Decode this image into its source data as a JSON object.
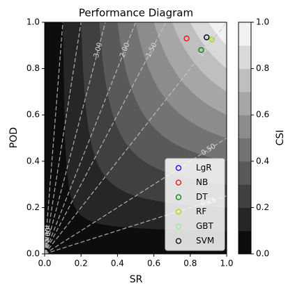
{
  "chart_data": {
    "type": "scatter",
    "title": "Performance Diagram",
    "x_label": "SR",
    "y_label": "POD",
    "xlim": [
      0,
      1
    ],
    "ylim": [
      0,
      1
    ],
    "xticks": [
      {
        "value": 0,
        "label": "0.0"
      },
      {
        "value": 0.2,
        "label": "0.2"
      },
      {
        "value": 0.4,
        "label": "0.4"
      },
      {
        "value": 0.6,
        "label": "0.6"
      },
      {
        "value": 0.8,
        "label": "0.8"
      },
      {
        "value": 1,
        "label": "1.0"
      }
    ],
    "yticks": [
      {
        "value": 0,
        "label": "0.0"
      },
      {
        "value": 0.2,
        "label": "0.2"
      },
      {
        "value": 0.4,
        "label": "0.4"
      },
      {
        "value": 0.6,
        "label": "0.6"
      },
      {
        "value": 0.8,
        "label": "0.8"
      },
      {
        "value": 1,
        "label": "1.0"
      }
    ],
    "colorbar_label": "CSI",
    "csi_levels": [
      0,
      0.1,
      0.2,
      0.3,
      0.4,
      0.5,
      0.6,
      0.7,
      0.8,
      0.9,
      1
    ],
    "colorbar_ticks": [
      {
        "value": 0,
        "label": "0.0"
      },
      {
        "value": 0.2,
        "label": "0.2"
      },
      {
        "value": 0.4,
        "label": "0.4"
      },
      {
        "value": 0.6,
        "label": "0.6"
      },
      {
        "value": 0.8,
        "label": "0.8"
      },
      {
        "value": 1,
        "label": "1.0"
      }
    ],
    "bias_lines": [
      {
        "value": 0.25,
        "label": "0.25"
      },
      {
        "value": 0.5,
        "label": "0.50"
      },
      {
        "value": 1,
        "label": "1.00"
      },
      {
        "value": 1.5,
        "label": "1.50"
      },
      {
        "value": 2,
        "label": "2.00"
      },
      {
        "value": 3,
        "label": "3.00"
      },
      {
        "value": 5,
        "label": "5.00"
      },
      {
        "value": 10,
        "label": "10.00"
      }
    ],
    "series": [
      {
        "name": "LgR",
        "color": "#0000ff",
        "x": [
          0.89
        ],
        "values": [
          0.935
        ]
      },
      {
        "name": "NB",
        "color": "#ff0000",
        "x": [
          0.78
        ],
        "values": [
          0.93
        ]
      },
      {
        "name": "DT",
        "color": "#008000",
        "x": [
          0.86
        ],
        "values": [
          0.88
        ]
      },
      {
        "name": "RF",
        "color": "#cccc00",
        "x": [
          0.92
        ],
        "values": [
          0.925
        ]
      },
      {
        "name": "GBT",
        "color": "#90ee90",
        "x": [
          0.91
        ],
        "values": [
          0.93
        ]
      },
      {
        "name": "SVM",
        "color": "#000000",
        "x": [
          0.89
        ],
        "values": [
          0.935
        ]
      }
    ],
    "legend": "lower right"
  }
}
